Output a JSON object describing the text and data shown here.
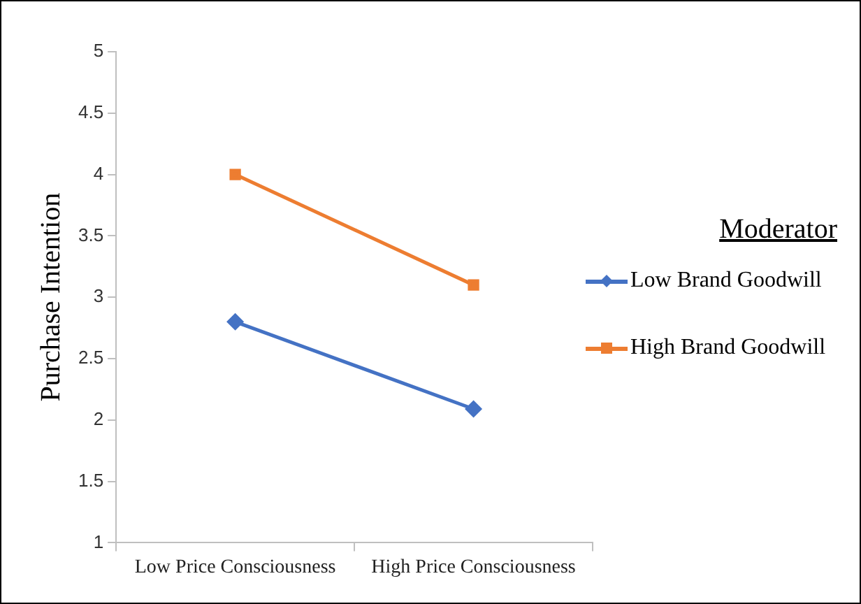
{
  "chart_data": {
    "type": "line",
    "ylabel": "Purchase Intention",
    "legend_title": "Moderator",
    "categories": [
      "Low Price Consciousness",
      "High Price Consciousness"
    ],
    "series": [
      {
        "name": "Low Brand Goodwill",
        "color": "#4472c4",
        "marker": "diamond",
        "values": [
          2.8,
          2.09
        ]
      },
      {
        "name": "High Brand Goodwill",
        "color": "#ed7d31",
        "marker": "square",
        "values": [
          4.0,
          3.1
        ]
      }
    ],
    "ylim": [
      1,
      5
    ],
    "yticks": [
      1,
      1.5,
      2,
      2.5,
      3,
      3.5,
      4,
      4.5,
      5
    ],
    "grid": false,
    "legend": "right",
    "line_style": "solid"
  }
}
